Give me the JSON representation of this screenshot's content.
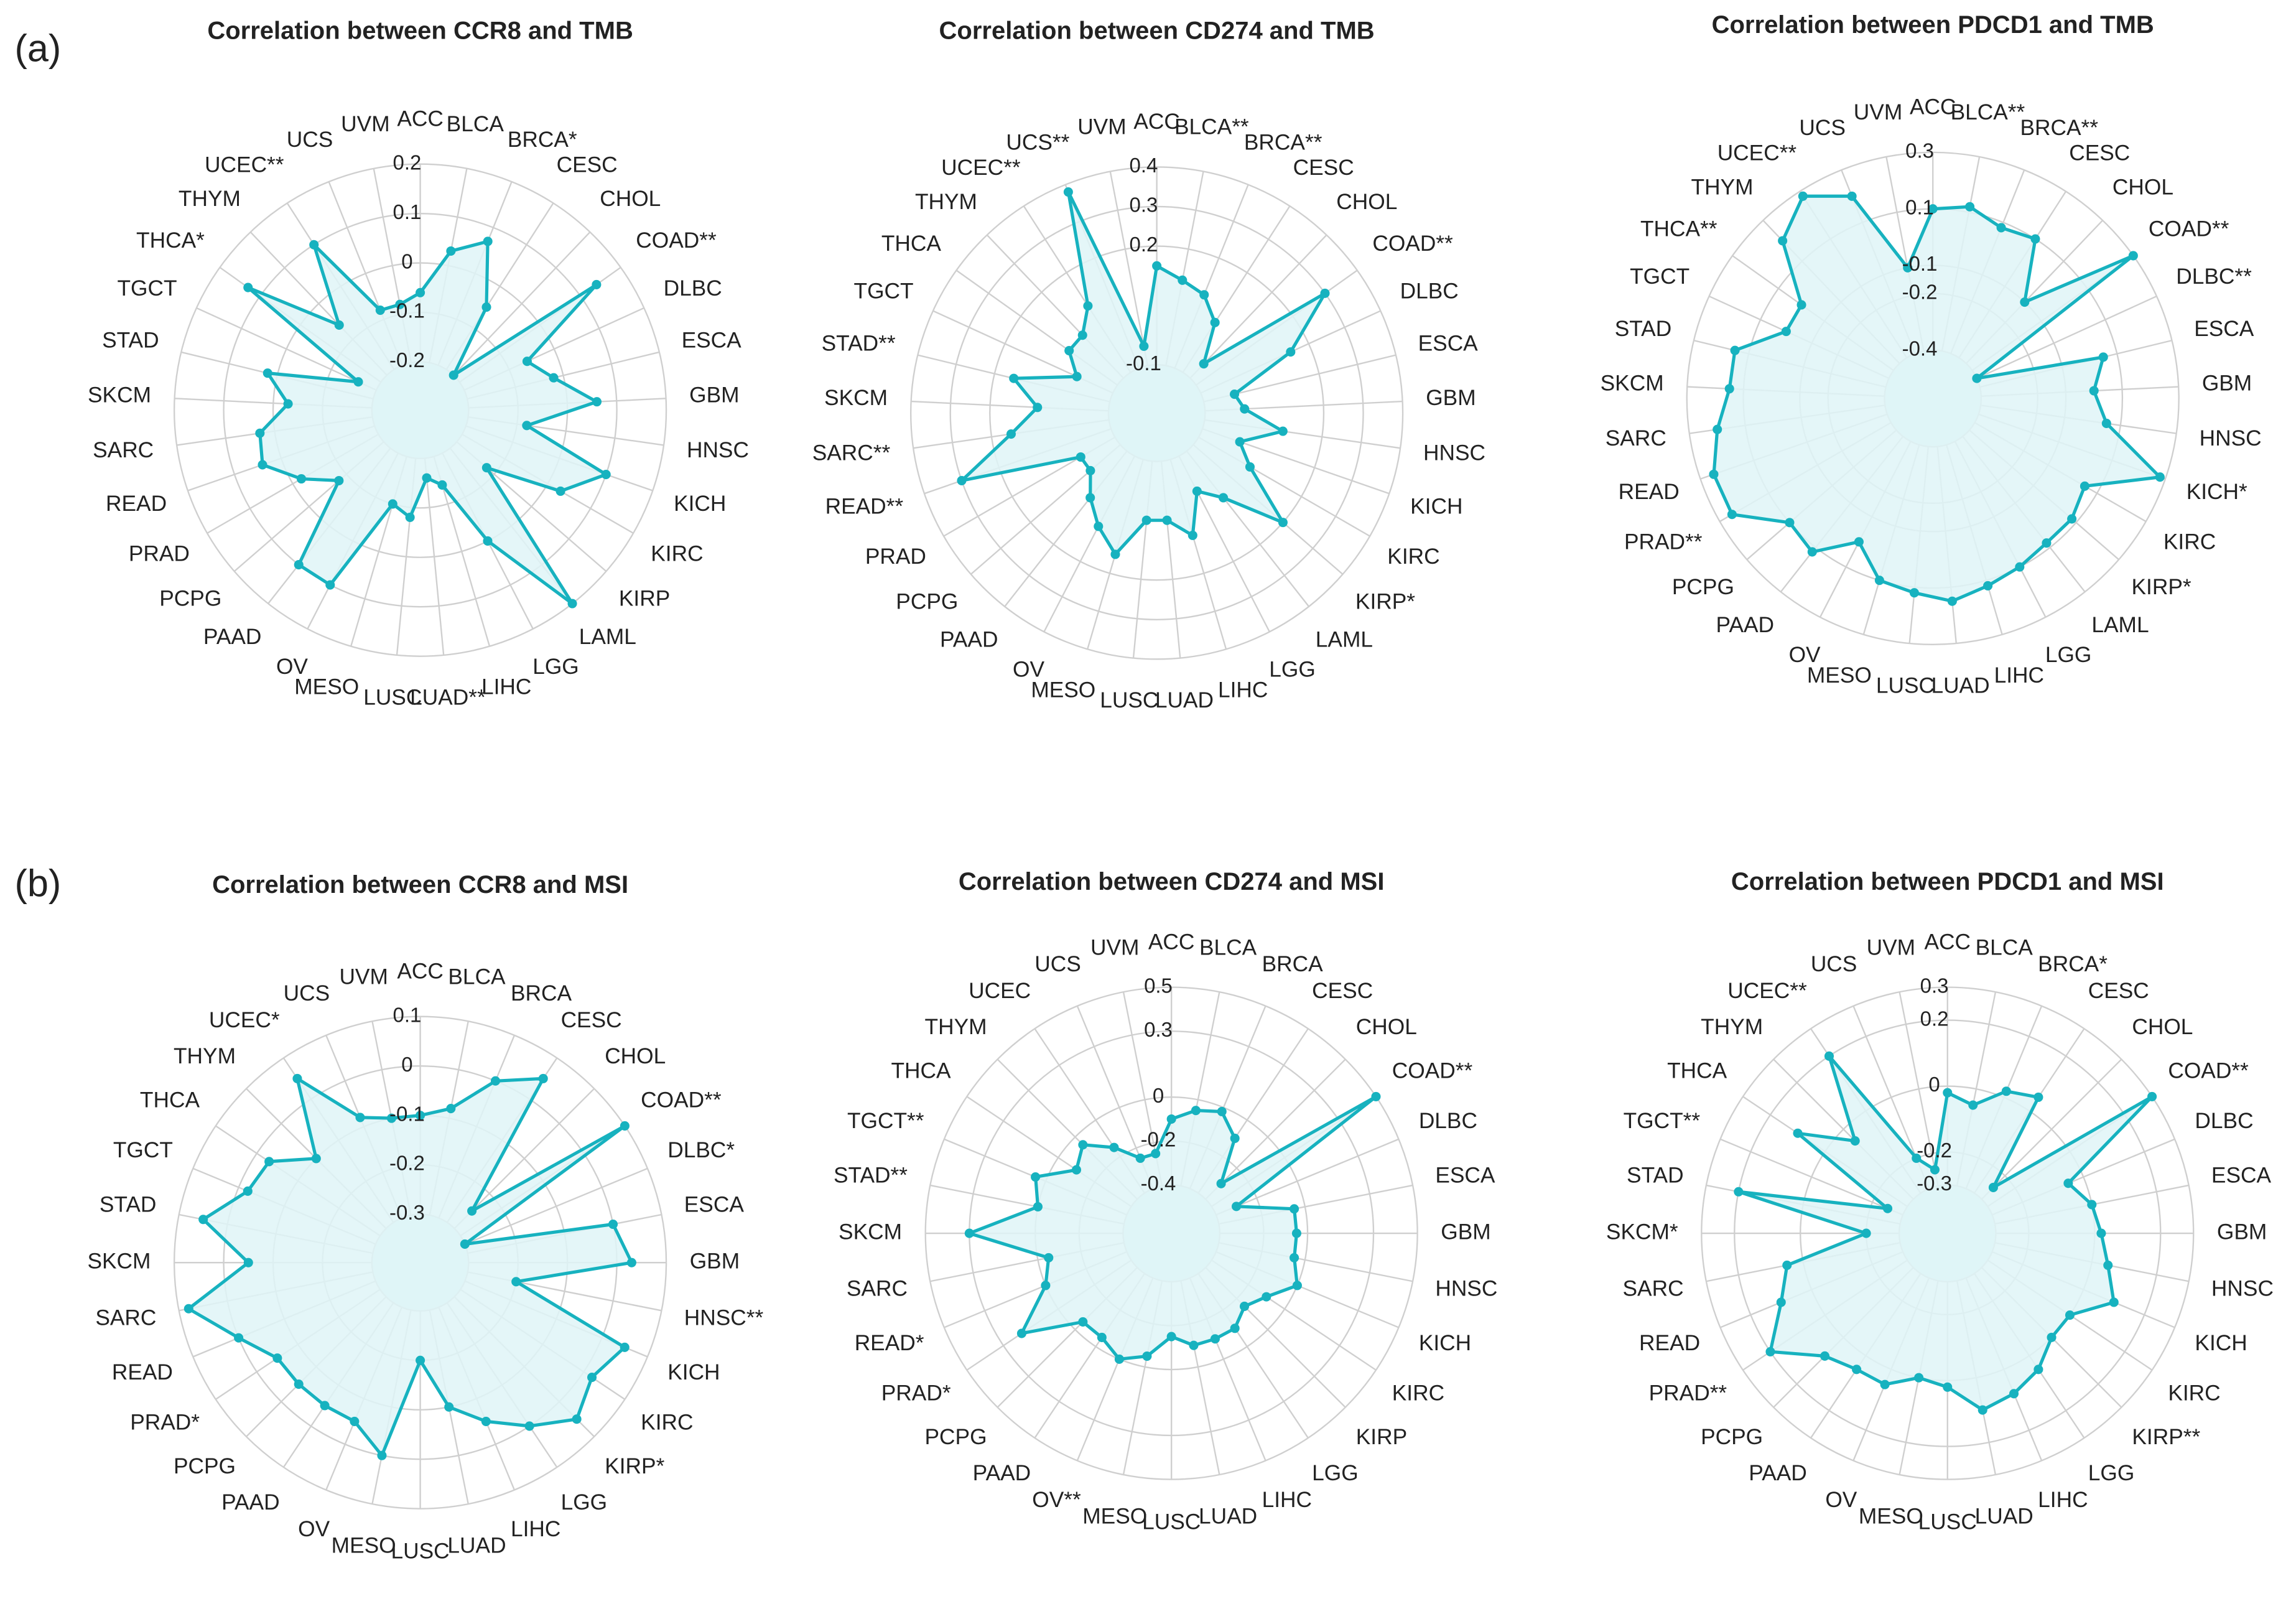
{
  "panel_labels": [
    "(a)",
    "(b)"
  ],
  "chart_data": [
    {
      "type": "radar",
      "title": "Correlation between CCR8 and TMB",
      "categories": [
        "ACC",
        "BLCA",
        "BRCA*",
        "CESC",
        "CHOL",
        "COAD**",
        "DLBC",
        "ESCA",
        "GBM",
        "HNSC",
        "KICH",
        "KIRC",
        "KIRP",
        "LAML",
        "LGG",
        "LIHC",
        "LUAD**",
        "LUSC",
        "MESO",
        "OV",
        "PAAD",
        "PCPG",
        "PRAD",
        "READ",
        "SARC",
        "SKCM",
        "STAD",
        "TGCT",
        "THCA*",
        "THYM",
        "UCEC**",
        "UCS",
        "UVM"
      ],
      "series": [
        {
          "color": "#17b2bf",
          "fill": "#dff4f7",
          "values": [
            -0.06,
            0.03,
            0.07,
            -0.05,
            -0.2,
            0.14,
            -0.06,
            -0.02,
            0.06,
            -0.08,
            0.1,
            0.03,
            -0.12,
            0.2,
            0.0,
            -0.14,
            -0.16,
            -0.08,
            -0.1,
            0.1,
            0.1,
            -0.08,
            -0.02,
            0.04,
            0.03,
            -0.03,
            0.02,
            -0.16,
            0.13,
            -0.06,
            0.1,
            -0.08,
            -0.08
          ]
        }
      ],
      "ylim": [
        -0.2,
        0.2
      ],
      "yticks": [
        -0.2,
        -0.1,
        0,
        0.1,
        0.2
      ]
    },
    {
      "type": "radar",
      "title": "Correlation between CD274 and TMB",
      "categories": [
        "ACC",
        "BLCA**",
        "BRCA**",
        "CESC",
        "CHOL",
        "COAD**",
        "DLBC",
        "ESCA",
        "GBM",
        "HNSC",
        "KICH",
        "KIRC",
        "KIRP*",
        "LAML",
        "LGG",
        "LIHC",
        "LUAD",
        "LUSC",
        "MESO",
        "OV",
        "PAAD",
        "PCPG",
        "PRAD",
        "READ**",
        "SARC**",
        "SKCM",
        "STAD**",
        "TGCT",
        "THCA",
        "THYM",
        "UCEC**",
        "UCS**",
        "UVM"
      ],
      "series": [
        {
          "color": "#17b2bf",
          "fill": "#dff4f7",
          "values": [
            0.15,
            0.12,
            0.1,
            0.05,
            -0.05,
            0.3,
            0.15,
            -0.02,
            0.0,
            0.1,
            0.0,
            0.05,
            0.2,
            0.05,
            0.0,
            0.1,
            0.05,
            0.05,
            0.15,
            0.1,
            0.05,
            0.0,
            0.0,
            0.3,
            0.15,
            0.08,
            0.15,
            0.0,
            0.05,
            0.05,
            0.1,
            0.38,
            -0.05
          ]
        }
      ],
      "ylim": [
        -0.1,
        0.4
      ],
      "yticks": [
        -0.1,
        0.2,
        0.3,
        0.4
      ]
    },
    {
      "type": "radar",
      "title": "Correlation between PDCD1 and TMB",
      "categories": [
        "ACC",
        "BLCA**",
        "BRCA**",
        "CESC",
        "CHOL",
        "COAD**",
        "DLBC**",
        "ESCA",
        "GBM",
        "HNSC",
        "KICH*",
        "KIRC",
        "KIRP*",
        "LAML",
        "LGG",
        "LIHC",
        "LUAD",
        "LUSC",
        "MESO",
        "OV",
        "PAAD",
        "PCPG",
        "PRAD**",
        "READ",
        "SARC",
        "SKCM",
        "STAD",
        "TGCT",
        "THCA**",
        "THYM",
        "UCEC**",
        "UCS",
        "UVM"
      ],
      "series": [
        {
          "color": "#17b2bf",
          "fill": "#dff4f7",
          "values": [
            0.1,
            0.12,
            0.08,
            0.1,
            -0.1,
            0.3,
            -0.4,
            0.05,
            0.0,
            0.05,
            0.28,
            0.05,
            0.08,
            0.08,
            0.1,
            0.12,
            0.15,
            0.12,
            0.1,
            0.0,
            0.12,
            0.1,
            0.25,
            0.25,
            0.2,
            0.15,
            0.15,
            0.0,
            0.0,
            0.2,
            0.28,
            0.2,
            -0.1
          ]
        }
      ],
      "ylim": [
        -0.4,
        0.3
      ],
      "yticks": [
        -0.4,
        -0.2,
        -0.1,
        0.1,
        0.3
      ]
    },
    {
      "type": "radar",
      "title": "Correlation between CCR8 and MSI",
      "categories": [
        "ACC",
        "BLCA",
        "BRCA",
        "CESC",
        "CHOL",
        "COAD**",
        "DLBC*",
        "ESCA",
        "GBM",
        "HNSC**",
        "KICH",
        "KIRC",
        "KIRP*",
        "LGG",
        "LIHC",
        "LUAD",
        "LUSC",
        "MESO",
        "OV",
        "PAAD",
        "PCPG",
        "PRAD*",
        "READ",
        "SARC",
        "SKCM",
        "STAD",
        "TGCT",
        "THCA",
        "THYM",
        "UCEC*",
        "UCS",
        "UVM"
      ],
      "series": [
        {
          "color": "#17b2bf",
          "fill": "#dff4f7",
          "values": [
            -0.1,
            -0.08,
            0.0,
            0.05,
            -0.25,
            0.1,
            -0.3,
            0.0,
            0.03,
            -0.2,
            0.05,
            0.02,
            0.05,
            0.0,
            -0.05,
            -0.1,
            -0.2,
            0.0,
            -0.05,
            -0.05,
            -0.05,
            -0.05,
            0.0,
            0.08,
            -0.05,
            0.05,
            -0.02,
            -0.03,
            -0.1,
            0.05,
            -0.08,
            -0.1
          ]
        }
      ],
      "ylim": [
        -0.3,
        0.1
      ],
      "yticks": [
        -0.3,
        -0.2,
        -0.1,
        0,
        0.1
      ]
    },
    {
      "type": "radar",
      "title": "Correlation between CD274 and MSI",
      "categories": [
        "ACC",
        "BLCA",
        "BRCA",
        "CESC",
        "CHOL",
        "COAD**",
        "DLBC",
        "ESCA",
        "GBM",
        "HNSC",
        "KICH",
        "KIRC",
        "KIRP",
        "LGG",
        "LIHC",
        "LUAD",
        "LUSC",
        "MESO",
        "OV**",
        "PAAD",
        "PCPG",
        "PRAD*",
        "READ*",
        "SARC",
        "SKCM",
        "STAD**",
        "TGCT**",
        "THCA",
        "THYM",
        "UCEC",
        "UCS",
        "UVM"
      ],
      "series": [
        {
          "color": "#17b2bf",
          "fill": "#dff4f7",
          "values": [
            -0.1,
            -0.05,
            -0.02,
            -0.1,
            -0.3,
            0.5,
            -0.3,
            -0.05,
            -0.05,
            -0.05,
            0.0,
            -0.1,
            -0.15,
            -0.1,
            -0.1,
            -0.1,
            -0.15,
            -0.05,
            0.0,
            -0.05,
            -0.05,
            0.2,
            0.0,
            -0.05,
            0.3,
            0.0,
            0.05,
            -0.1,
            -0.05,
            -0.15,
            -0.25,
            -0.25
          ]
        }
      ],
      "ylim": [
        -0.4,
        0.5
      ],
      "yticks": [
        -0.4,
        -0.2,
        0,
        0.3,
        0.5
      ]
    },
    {
      "type": "radar",
      "title": "Correlation between PDCD1 and MSI",
      "categories": [
        "ACC",
        "BLCA",
        "BRCA*",
        "CESC",
        "CHOL",
        "COAD**",
        "DLBC",
        "ESCA",
        "GBM",
        "HNSC",
        "KICH",
        "KIRC",
        "KIRP**",
        "LGG",
        "LIHC",
        "LUAD",
        "LUSC",
        "MESO",
        "OV",
        "PAAD",
        "PCPG",
        "PRAD**",
        "READ",
        "SARC",
        "SKCM*",
        "STAD",
        "TGCT**",
        "THCA",
        "THYM",
        "UCEC**",
        "UCS",
        "UVM"
      ],
      "series": [
        {
          "color": "#17b2bf",
          "fill": "#dff4f7",
          "values": [
            -0.02,
            -0.05,
            0.02,
            0.05,
            -0.25,
            0.3,
            -0.05,
            0.0,
            0.02,
            0.05,
            0.1,
            0.0,
            0.0,
            0.05,
            0.08,
            0.1,
            0.02,
            0.0,
            0.05,
            0.05,
            0.08,
            0.2,
            0.1,
            0.05,
            -0.2,
            0.2,
            -0.25,
            0.1,
            -0.05,
            0.2,
            -0.2,
            -0.25
          ]
        }
      ],
      "ylim": [
        -0.3,
        0.3
      ],
      "yticks": [
        -0.3,
        -0.2,
        0,
        0.2,
        0.3
      ]
    }
  ]
}
